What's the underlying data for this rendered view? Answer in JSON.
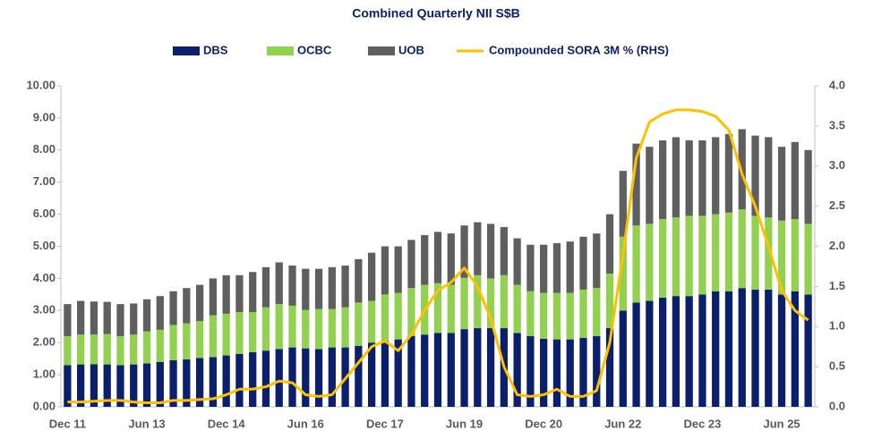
{
  "chart_data": {
    "type": "bar",
    "stacked": true,
    "title": "Combined Quarterly NII S$B",
    "categories": [
      "Dec 11",
      null,
      null,
      null,
      null,
      null,
      "Jun 13",
      null,
      null,
      null,
      null,
      null,
      "Dec 14",
      null,
      null,
      null,
      null,
      null,
      "Jun 16",
      null,
      null,
      null,
      null,
      null,
      "Dec 17",
      null,
      null,
      null,
      null,
      null,
      "Jun 19",
      null,
      null,
      null,
      null,
      null,
      "Dec 20",
      null,
      null,
      null,
      null,
      null,
      "Jun 22",
      null,
      null,
      null,
      null,
      null,
      "Dec 23",
      null,
      null,
      null,
      null,
      null,
      "Jun 25",
      null,
      null
    ],
    "series": [
      {
        "name": "DBS",
        "color": "#0b1f6b",
        "values": [
          1.3,
          1.32,
          1.33,
          1.32,
          1.3,
          1.32,
          1.35,
          1.4,
          1.45,
          1.48,
          1.52,
          1.55,
          1.6,
          1.65,
          1.7,
          1.75,
          1.8,
          1.85,
          1.82,
          1.8,
          1.85,
          1.85,
          1.9,
          2.0,
          2.05,
          2.1,
          2.2,
          2.25,
          2.3,
          2.3,
          2.42,
          2.45,
          2.45,
          2.45,
          2.3,
          2.2,
          2.12,
          2.1,
          2.1,
          2.15,
          2.2,
          2.45,
          3.0,
          3.25,
          3.3,
          3.4,
          3.45,
          3.45,
          3.5,
          3.6,
          3.6,
          3.7,
          3.65,
          3.65,
          3.5,
          3.6,
          3.5
        ]
      },
      {
        "name": "OCBC",
        "color": "#92d050",
        "values": [
          0.9,
          0.93,
          0.92,
          0.95,
          0.9,
          0.93,
          1.0,
          1.0,
          1.1,
          1.12,
          1.15,
          1.3,
          1.3,
          1.3,
          1.25,
          1.35,
          1.4,
          1.3,
          1.2,
          1.25,
          1.2,
          1.25,
          1.35,
          1.3,
          1.45,
          1.45,
          1.5,
          1.55,
          1.55,
          1.5,
          1.6,
          1.65,
          1.55,
          1.65,
          1.5,
          1.4,
          1.43,
          1.45,
          1.45,
          1.5,
          1.5,
          1.7,
          2.3,
          2.4,
          2.4,
          2.45,
          2.45,
          2.5,
          2.45,
          2.4,
          2.45,
          2.45,
          2.3,
          2.25,
          2.3,
          2.25,
          2.2
        ]
      },
      {
        "name": "UOB",
        "color": "#5f5f5f",
        "values": [
          1.0,
          1.05,
          1.03,
          1.0,
          1.0,
          0.97,
          1.0,
          1.05,
          1.05,
          1.1,
          1.13,
          1.15,
          1.2,
          1.15,
          1.25,
          1.25,
          1.3,
          1.25,
          1.28,
          1.25,
          1.3,
          1.3,
          1.35,
          1.5,
          1.5,
          1.45,
          1.5,
          1.55,
          1.6,
          1.6,
          1.63,
          1.65,
          1.7,
          1.5,
          1.45,
          1.45,
          1.5,
          1.55,
          1.6,
          1.65,
          1.7,
          1.85,
          2.05,
          2.55,
          2.4,
          2.45,
          2.5,
          2.35,
          2.35,
          2.4,
          2.45,
          2.5,
          2.5,
          2.5,
          2.3,
          2.4,
          2.3
        ]
      },
      {
        "name": "Compounded SORA 3M % (RHS)",
        "type": "line",
        "axis": "y2",
        "color": "#ffc000",
        "values": [
          0.06,
          0.06,
          0.07,
          0.08,
          0.08,
          0.06,
          0.05,
          0.05,
          0.08,
          0.08,
          0.09,
          0.1,
          0.15,
          0.22,
          0.22,
          0.25,
          0.32,
          0.3,
          0.15,
          0.13,
          0.15,
          0.35,
          0.55,
          0.75,
          0.82,
          0.7,
          0.9,
          1.2,
          1.45,
          1.55,
          1.73,
          1.5,
          1.1,
          0.5,
          0.15,
          0.13,
          0.15,
          0.22,
          0.13,
          0.13,
          0.2,
          0.8,
          1.9,
          3.1,
          3.55,
          3.65,
          3.7,
          3.7,
          3.68,
          3.62,
          3.45,
          2.9,
          2.5,
          2.0,
          1.45,
          1.2,
          1.08
        ]
      }
    ],
    "ylim": [
      0,
      10
    ],
    "yticks": [
      {
        "value": 0,
        "label": "0.00"
      },
      {
        "value": 1,
        "label": "1.00"
      },
      {
        "value": 2,
        "label": "2.00"
      },
      {
        "value": 3,
        "label": "3.00"
      },
      {
        "value": 4,
        "label": "4.00"
      },
      {
        "value": 5,
        "label": "5.00"
      },
      {
        "value": 6,
        "label": "6.00"
      },
      {
        "value": 7,
        "label": "7.00"
      },
      {
        "value": 8,
        "label": "8.00"
      },
      {
        "value": 9,
        "label": "9.00"
      },
      {
        "value": 10,
        "label": "10.00"
      }
    ],
    "y2lim": [
      0,
      4
    ],
    "y2ticks": [
      {
        "value": 0,
        "label": "0.0"
      },
      {
        "value": 0.5,
        "label": "0.5"
      },
      {
        "value": 1,
        "label": "1.0"
      },
      {
        "value": 1.5,
        "label": "1.5"
      },
      {
        "value": 2,
        "label": "2.0"
      },
      {
        "value": 2.5,
        "label": "2.5"
      },
      {
        "value": 3,
        "label": "3.0"
      },
      {
        "value": 3.5,
        "label": "3.5"
      },
      {
        "value": 4,
        "label": "4.0"
      }
    ],
    "grid": false,
    "legend": "top"
  }
}
